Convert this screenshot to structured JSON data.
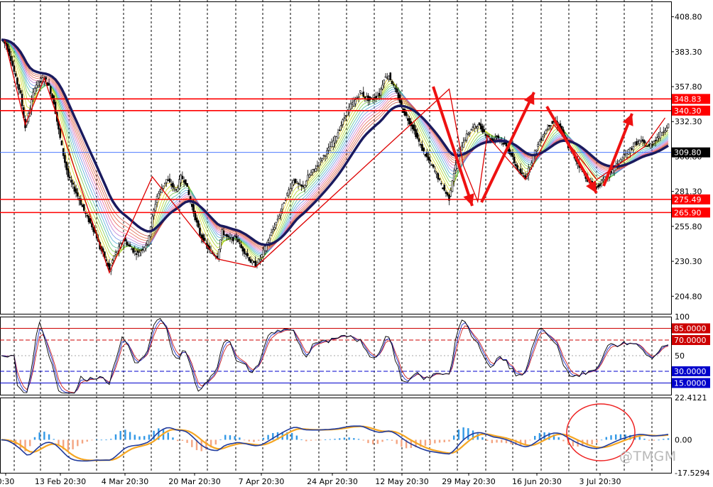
{
  "chart_data": {
    "type": "candlestick",
    "panels": {
      "price": {
        "ylim": [
          192,
          420
        ],
        "ticks": [
          "408.80",
          "383.30",
          "357.80",
          "332.30",
          "306.80",
          "281.30",
          "255.80",
          "230.30",
          "204.80"
        ],
        "levels": [
          {
            "value": 348.83,
            "label": "348.83",
            "color": "#ff0000"
          },
          {
            "value": 340.3,
            "label": "340.30",
            "color": "#ff0000"
          },
          {
            "value": 275.49,
            "label": "275.49",
            "color": "#ff0000"
          },
          {
            "value": 265.9,
            "label": "265.90",
            "color": "#ff0000"
          }
        ],
        "current": {
          "value": 309.8,
          "label": "309.80"
        }
      },
      "stochastic": {
        "ylim": [
          0,
          100
        ],
        "ticks": [
          "100",
          "50"
        ],
        "levels": [
          {
            "value": 85,
            "label": "85.0000",
            "color": "#cc0000"
          },
          {
            "value": 70,
            "label": "70.0000",
            "color": "#cc0000"
          },
          {
            "value": 30,
            "label": "30.0000",
            "color": "#0000cc"
          },
          {
            "value": 15,
            "label": "15.0000",
            "color": "#0000cc"
          }
        ]
      },
      "macd": {
        "ylim": [
          -17.5294,
          22.4121
        ],
        "ticks": [
          "22.4121",
          "0.00",
          "-17.5294"
        ]
      }
    },
    "x_labels": [
      "0:30",
      "13 Feb 20:30",
      "4 Mar 20:30",
      "20 Mar 20:30",
      "7 Apr 20:30",
      "24 Apr 20:30",
      "12 May 20:30",
      "29 May 20:30",
      "16 Jun 20:30",
      "3 Jul 20:30"
    ],
    "close_path": [
      [
        0,
        392
      ],
      [
        3,
        388
      ],
      [
        6,
        378
      ],
      [
        9,
        364
      ],
      [
        12,
        352
      ],
      [
        15,
        328
      ],
      [
        18,
        342
      ],
      [
        21,
        358
      ],
      [
        24,
        362
      ],
      [
        27,
        364
      ],
      [
        30,
        358
      ],
      [
        33,
        346
      ],
      [
        36,
        326
      ],
      [
        39,
        308
      ],
      [
        42,
        292
      ],
      [
        45,
        285
      ],
      [
        48,
        278
      ],
      [
        51,
        270
      ],
      [
        54,
        262
      ],
      [
        57,
        256
      ],
      [
        60,
        248
      ],
      [
        62,
        240
      ],
      [
        64,
        236
      ],
      [
        66,
        230
      ],
      [
        68,
        224
      ],
      [
        71,
        234
      ],
      [
        74,
        240
      ],
      [
        77,
        246
      ],
      [
        80,
        242
      ],
      [
        83,
        238
      ],
      [
        86,
        236
      ],
      [
        89,
        240
      ],
      [
        92,
        244
      ],
      [
        95,
        262
      ],
      [
        98,
        278
      ],
      [
        101,
        284
      ],
      [
        104,
        290
      ],
      [
        107,
        286
      ],
      [
        110,
        282
      ],
      [
        113,
        292
      ],
      [
        116,
        288
      ],
      [
        119,
        274
      ],
      [
        122,
        262
      ],
      [
        125,
        250
      ],
      [
        128,
        244
      ],
      [
        131,
        238
      ],
      [
        133,
        236
      ],
      [
        136,
        234
      ],
      [
        139,
        252
      ],
      [
        142,
        248
      ],
      [
        145,
        246
      ],
      [
        148,
        248
      ],
      [
        151,
        240
      ],
      [
        154,
        236
      ],
      [
        157,
        230
      ],
      [
        160,
        228
      ],
      [
        163,
        232
      ],
      [
        166,
        240
      ],
      [
        169,
        248
      ],
      [
        172,
        256
      ],
      [
        175,
        264
      ],
      [
        178,
        274
      ],
      [
        181,
        282
      ],
      [
        184,
        290
      ],
      [
        187,
        286
      ],
      [
        190,
        284
      ],
      [
        193,
        292
      ],
      [
        196,
        296
      ],
      [
        199,
        300
      ],
      [
        202,
        306
      ],
      [
        205,
        310
      ],
      [
        208,
        316
      ],
      [
        211,
        322
      ],
      [
        214,
        330
      ],
      [
        217,
        338
      ],
      [
        220,
        344
      ],
      [
        223,
        348
      ],
      [
        226,
        354
      ],
      [
        229,
        350
      ],
      [
        232,
        348
      ],
      [
        235,
        350
      ],
      [
        238,
        352
      ],
      [
        241,
        364
      ],
      [
        244,
        366
      ],
      [
        247,
        358
      ],
      [
        250,
        350
      ],
      [
        253,
        340
      ],
      [
        256,
        334
      ],
      [
        259,
        328
      ],
      [
        262,
        320
      ],
      [
        265,
        312
      ],
      [
        268,
        306
      ],
      [
        271,
        300
      ],
      [
        274,
        294
      ],
      [
        277,
        286
      ],
      [
        280,
        280
      ],
      [
        282,
        276
      ],
      [
        284,
        290
      ],
      [
        286,
        300
      ],
      [
        288,
        310
      ],
      [
        291,
        318
      ],
      [
        294,
        324
      ],
      [
        297,
        328
      ],
      [
        300,
        330
      ],
      [
        303,
        326
      ],
      [
        306,
        322
      ],
      [
        309,
        318
      ],
      [
        312,
        322
      ],
      [
        315,
        318
      ],
      [
        318,
        314
      ],
      [
        321,
        308
      ],
      [
        324,
        300
      ],
      [
        327,
        294
      ],
      [
        330,
        292
      ],
      [
        333,
        300
      ],
      [
        336,
        310
      ],
      [
        339,
        318
      ],
      [
        342,
        324
      ],
      [
        345,
        330
      ],
      [
        348,
        332
      ],
      [
        351,
        330
      ],
      [
        354,
        322
      ],
      [
        357,
        314
      ],
      [
        360,
        308
      ],
      [
        363,
        302
      ],
      [
        366,
        296
      ],
      [
        369,
        290
      ],
      [
        372,
        286
      ],
      [
        375,
        284
      ],
      [
        378,
        288
      ],
      [
        381,
        292
      ],
      [
        384,
        296
      ],
      [
        387,
        300
      ],
      [
        390,
        304
      ],
      [
        393,
        308
      ],
      [
        396,
        312
      ],
      [
        399,
        316
      ],
      [
        402,
        318
      ],
      [
        405,
        316
      ],
      [
        408,
        314
      ],
      [
        411,
        318
      ],
      [
        414,
        322
      ],
      [
        417,
        326
      ],
      [
        420,
        330
      ]
    ],
    "price_overlays": [
      "moving-average ribbon",
      "thick navy moving average",
      "red zig-zag lines",
      "red trend arrows"
    ],
    "notes": "Oscillator and MACD panels rendered as approximate traces"
  },
  "watermark": "@TMGM",
  "colors": {
    "grid": "#000000",
    "candle": "#000000",
    "ma_main": "#1a1a5e",
    "level": "#ff0000",
    "price_line": "#3366ff",
    "hist_pos": "#3399e6",
    "hist_neg": "#f4a582",
    "macd_main": "#1f3a9c",
    "macd_signal": "#f5a623"
  }
}
